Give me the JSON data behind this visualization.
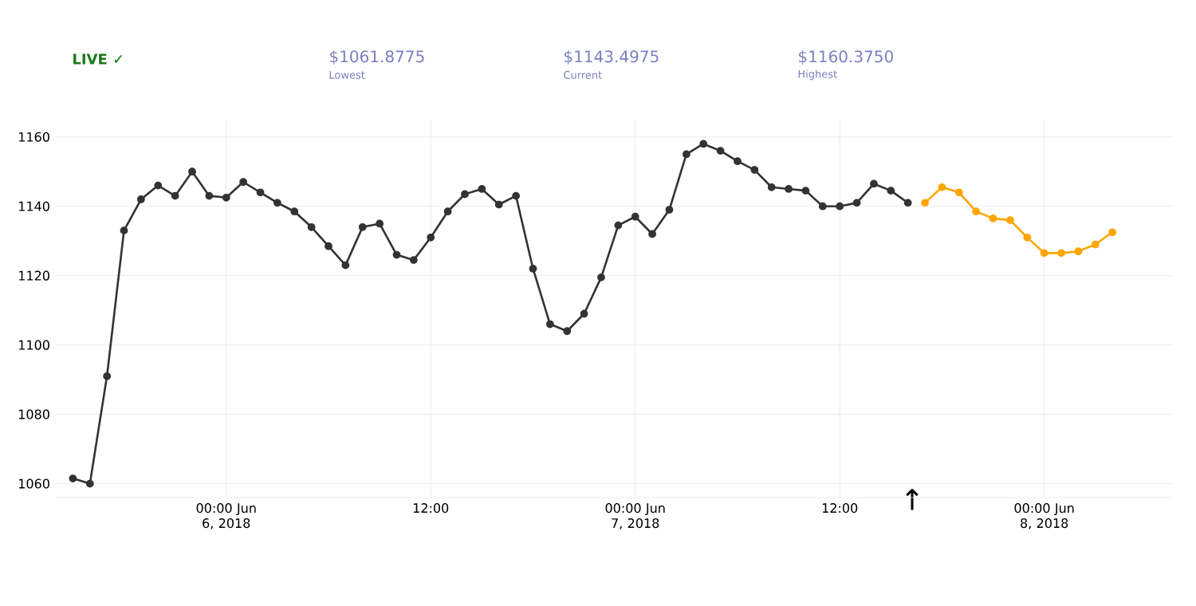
{
  "chart_data": {
    "type": "line",
    "xlim": [
      "2018-06-05T14:00",
      "2018-06-08T07:30"
    ],
    "ylim": [
      1056,
      1165
    ],
    "xticks": [
      {
        "value": "2018-06-06T00:00",
        "label": "00:00 Jun 6, 2018"
      },
      {
        "value": "2018-06-06T12:00",
        "label": "12:00"
      },
      {
        "value": "2018-06-07T00:00",
        "label": "00:00 Jun 7, 2018"
      },
      {
        "value": "2018-06-07T12:00",
        "label": "12:00"
      },
      {
        "value": "2018-06-08T00:00",
        "label": "00:00 Jun 8, 2018"
      }
    ],
    "yticks": [
      1060,
      1080,
      1100,
      1120,
      1140,
      1160
    ],
    "grid": true,
    "marker": "circle",
    "series": [
      {
        "color": "#333333",
        "x": [
          "2018-06-05T15:00",
          "2018-06-05T16:00",
          "2018-06-05T17:00",
          "2018-06-05T18:00",
          "2018-06-05T19:00",
          "2018-06-05T20:00",
          "2018-06-05T21:00",
          "2018-06-05T22:00",
          "2018-06-05T23:00",
          "2018-06-06T00:00",
          "2018-06-06T01:00",
          "2018-06-06T02:00",
          "2018-06-06T03:00",
          "2018-06-06T04:00",
          "2018-06-06T05:00",
          "2018-06-06T06:00",
          "2018-06-06T07:00",
          "2018-06-06T08:00",
          "2018-06-06T09:00",
          "2018-06-06T10:00",
          "2018-06-06T11:00",
          "2018-06-06T12:00",
          "2018-06-06T13:00",
          "2018-06-06T14:00",
          "2018-06-06T15:00",
          "2018-06-06T16:00",
          "2018-06-06T17:00",
          "2018-06-06T18:00",
          "2018-06-06T19:00",
          "2018-06-06T20:00",
          "2018-06-06T21:00",
          "2018-06-06T22:00",
          "2018-06-06T23:00",
          "2018-06-07T00:00",
          "2018-06-07T01:00",
          "2018-06-07T02:00",
          "2018-06-07T03:00",
          "2018-06-07T04:00",
          "2018-06-07T05:00",
          "2018-06-07T06:00",
          "2018-06-07T07:00",
          "2018-06-07T08:00",
          "2018-06-07T09:00",
          "2018-06-07T10:00",
          "2018-06-07T11:00",
          "2018-06-07T12:00",
          "2018-06-07T13:00",
          "2018-06-07T14:00",
          "2018-06-07T15:00",
          "2018-06-07T16:00"
        ],
        "values": [
          1061.5,
          1060,
          1091,
          1133,
          1142,
          1146,
          1143,
          1150,
          1143,
          1142.5,
          1147,
          1144,
          1141,
          1138.5,
          1134,
          1128.5,
          1123,
          1134,
          1135,
          1126,
          1124.5,
          1131,
          1138.5,
          1143.5,
          1145,
          1140.5,
          1143,
          1122,
          1106,
          1104,
          1109,
          1119.5,
          1134.5,
          1137,
          1132,
          1139,
          1155,
          1158,
          1156,
          1153,
          1150.5,
          1145.5,
          1145,
          1144.5,
          1140,
          1140,
          1141,
          1146.5,
          1144.5,
          1141
        ]
      },
      {
        "color": "#ffa500",
        "x": [
          "2018-06-07T17:00",
          "2018-06-07T18:00",
          "2018-06-07T19:00",
          "2018-06-07T20:00",
          "2018-06-07T21:00",
          "2018-06-07T22:00",
          "2018-06-07T23:00",
          "2018-06-08T00:00",
          "2018-06-08T01:00",
          "2018-06-08T02:00",
          "2018-06-08T03:00",
          "2018-06-08T04:00"
        ],
        "values": [
          1141,
          1145.5,
          1144,
          1138.5,
          1136.5,
          1136,
          1131,
          1126.5,
          1126.5,
          1127,
          1129,
          1132.5
        ]
      }
    ],
    "annotations": [
      "LIVE ✓",
      "$1061.8775",
      "Lowest",
      "$1143.4975",
      "Current",
      "$1160.3750",
      "Highest",
      "↑"
    ]
  }
}
